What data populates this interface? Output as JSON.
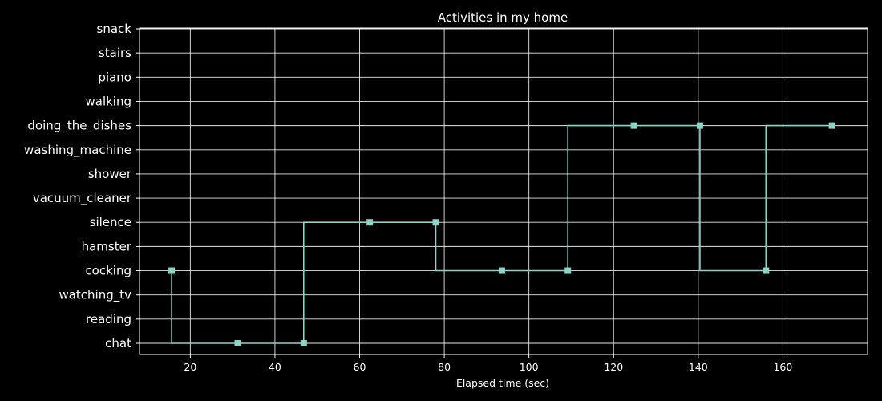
{
  "chart_data": {
    "type": "line",
    "step": "post",
    "title": "Activities in my home",
    "xlabel": "Elapsed time (sec)",
    "ylabel": "",
    "xlim": [
      8,
      180
    ],
    "xticks": [
      20,
      40,
      60,
      80,
      100,
      120,
      140,
      160
    ],
    "categories": [
      "chat",
      "reading",
      "watching_tv",
      "cocking",
      "hamster",
      "silence",
      "vacuum_cleaner",
      "shower",
      "washing_machine",
      "doing_the_dishes",
      "walking",
      "piano",
      "stairs",
      "snack"
    ],
    "series": [
      {
        "color": "#8dd3c7",
        "marker": "square",
        "points": [
          {
            "x": 15.6,
            "y": "cocking"
          },
          {
            "x": 15.6,
            "y": "chat"
          },
          {
            "x": 31.2,
            "y": "chat"
          },
          {
            "x": 46.8,
            "y": "chat"
          },
          {
            "x": 46.8,
            "y": "silence"
          },
          {
            "x": 62.4,
            "y": "silence"
          },
          {
            "x": 78.0,
            "y": "silence"
          },
          {
            "x": 78.0,
            "y": "cocking"
          },
          {
            "x": 93.6,
            "y": "cocking"
          },
          {
            "x": 109.2,
            "y": "cocking"
          },
          {
            "x": 109.2,
            "y": "doing_the_dishes"
          },
          {
            "x": 124.8,
            "y": "doing_the_dishes"
          },
          {
            "x": 140.4,
            "y": "doing_the_dishes"
          },
          {
            "x": 140.4,
            "y": "cocking"
          },
          {
            "x": 156.0,
            "y": "cocking"
          },
          {
            "x": 156.0,
            "y": "doing_the_dishes"
          },
          {
            "x": 171.6,
            "y": "doing_the_dishes"
          }
        ],
        "markers": [
          {
            "x": 15.6,
            "y": "cocking"
          },
          {
            "x": 31.2,
            "y": "chat"
          },
          {
            "x": 46.8,
            "y": "chat"
          },
          {
            "x": 62.4,
            "y": "silence"
          },
          {
            "x": 78.0,
            "y": "silence"
          },
          {
            "x": 93.6,
            "y": "cocking"
          },
          {
            "x": 109.2,
            "y": "cocking"
          },
          {
            "x": 124.8,
            "y": "doing_the_dishes"
          },
          {
            "x": 140.4,
            "y": "doing_the_dishes"
          },
          {
            "x": 156.0,
            "y": "cocking"
          },
          {
            "x": 171.6,
            "y": "doing_the_dishes"
          }
        ]
      }
    ],
    "grid": true,
    "background": "#000000",
    "foreground": "#ffffff"
  }
}
